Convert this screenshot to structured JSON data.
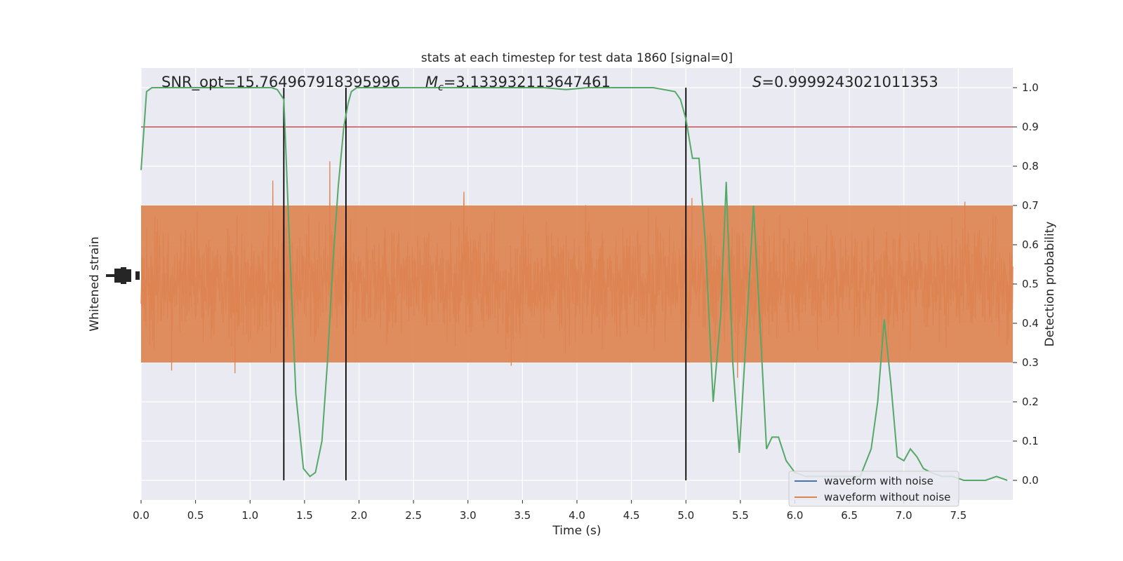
{
  "chart_data": {
    "type": "line",
    "title": "stats at each timestep for test data 1860 [signal=0]",
    "xlabel": "Time (s)",
    "ylabel_left": "Whitened strain",
    "ylabel_right": "Detection probability",
    "xlim": [
      0.0,
      8.0
    ],
    "ylim_right": [
      -0.05,
      1.05
    ],
    "x_ticks": [
      "0.0",
      "0.5",
      "1.0",
      "1.5",
      "2.0",
      "2.5",
      "3.0",
      "3.5",
      "4.0",
      "4.5",
      "5.0",
      "5.5",
      "6.0",
      "6.5",
      "7.0",
      "7.5"
    ],
    "y_ticks_right": [
      "0.0",
      "0.1",
      "0.2",
      "0.3",
      "0.4",
      "0.5",
      "0.6",
      "0.7",
      "0.8",
      "0.9",
      "1.0"
    ],
    "grid": true,
    "annotations": {
      "snr": "SNR_opt=15.764967918395996",
      "mc_prefix": "M",
      "mc_sub": "c",
      "mc_value": "=3.133932113647461",
      "s_prefix": "S",
      "s_value": "=0.9999243021011353"
    },
    "threshold": 0.9,
    "vertical_lines": [
      1.31,
      1.88,
      5.0
    ],
    "series": [
      {
        "name": "waveform with noise",
        "color": "#4c72b0"
      },
      {
        "name": "waveform without noise",
        "color": "#dd8452"
      },
      {
        "color": "#55a868",
        "x": [
          0.0,
          0.05,
          0.1,
          0.2,
          0.3,
          0.4,
          0.5,
          0.6,
          0.7,
          0.8,
          0.9,
          1.0,
          1.1,
          1.2,
          1.25,
          1.31,
          1.36,
          1.42,
          1.49,
          1.55,
          1.6,
          1.66,
          1.71,
          1.76,
          1.81,
          1.86,
          1.9,
          1.93,
          1.98,
          2.05,
          2.15,
          2.3,
          2.5,
          2.7,
          2.9,
          3.1,
          3.3,
          3.5,
          3.7,
          3.9,
          4.1,
          4.3,
          4.5,
          4.7,
          4.8,
          4.9,
          4.95,
          5.0,
          5.06,
          5.12,
          5.18,
          5.25,
          5.32,
          5.37,
          5.43,
          5.49,
          5.56,
          5.62,
          5.68,
          5.74,
          5.79,
          5.85,
          5.92,
          6.0,
          6.1,
          6.2,
          6.3,
          6.4,
          6.5,
          6.6,
          6.7,
          6.76,
          6.82,
          6.88,
          6.94,
          7.0,
          7.06,
          7.12,
          7.18,
          7.25,
          7.35,
          7.45,
          7.55,
          7.65,
          7.75,
          7.85,
          7.95
        ],
        "y": [
          0.79,
          0.99,
          1.0,
          1.0,
          1.0,
          1.0,
          1.0,
          1.0,
          1.0,
          1.0,
          1.0,
          1.0,
          1.0,
          1.0,
          0.995,
          0.97,
          0.62,
          0.22,
          0.03,
          0.01,
          0.02,
          0.1,
          0.3,
          0.55,
          0.75,
          0.9,
          0.96,
          0.99,
          1.0,
          1.0,
          1.0,
          1.0,
          1.0,
          1.0,
          1.0,
          1.0,
          1.0,
          1.0,
          1.0,
          0.995,
          1.0,
          1.0,
          1.0,
          1.0,
          0.995,
          0.99,
          0.97,
          0.92,
          0.82,
          0.82,
          0.6,
          0.2,
          0.42,
          0.76,
          0.3,
          0.07,
          0.4,
          0.7,
          0.4,
          0.08,
          0.11,
          0.11,
          0.05,
          0.02,
          0.01,
          0.01,
          0.01,
          0.01,
          0.01,
          0.01,
          0.08,
          0.2,
          0.41,
          0.25,
          0.06,
          0.05,
          0.08,
          0.06,
          0.03,
          0.02,
          0.01,
          0.01,
          0.0,
          0.0,
          0.0,
          0.01,
          0.0
        ]
      }
    ],
    "legend_placement": "lower-right"
  },
  "colors": {
    "axes_bg": "#eaeaf2",
    "grid": "#ffffff",
    "threshold": "#c44e52",
    "vline": "#000000"
  }
}
